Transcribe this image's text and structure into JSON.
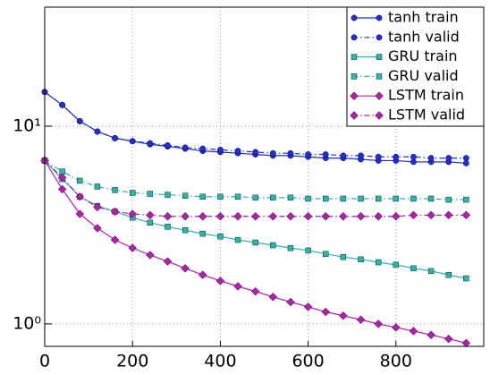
{
  "chart_data": {
    "type": "line",
    "x": [
      0,
      40,
      80,
      120,
      160,
      200,
      240,
      280,
      320,
      360,
      400,
      440,
      480,
      520,
      560,
      600,
      640,
      680,
      720,
      760,
      800,
      840,
      880,
      920,
      960
    ],
    "series": [
      {
        "name": "tanh train",
        "color": "#1f2fd6",
        "marker": "circle",
        "linestyle": "solid",
        "values": [
          14.9,
          12.8,
          10.6,
          9.4,
          8.7,
          8.4,
          8.1,
          7.9,
          7.7,
          7.5,
          7.4,
          7.3,
          7.2,
          7.1,
          7.1,
          7.0,
          6.9,
          6.9,
          6.8,
          6.7,
          6.7,
          6.6,
          6.6,
          6.6,
          6.5
        ]
      },
      {
        "name": "tanh valid",
        "color": "#1f2fd6",
        "marker": "circle",
        "linestyle": "dashdot",
        "values": [
          14.9,
          12.8,
          10.6,
          9.4,
          8.7,
          8.4,
          8.2,
          8.0,
          7.8,
          7.7,
          7.6,
          7.5,
          7.4,
          7.3,
          7.3,
          7.2,
          7.2,
          7.1,
          7.1,
          7.0,
          7.0,
          7.0,
          6.9,
          6.9,
          6.9
        ]
      },
      {
        "name": "GRU train",
        "color": "#2ab5ae",
        "marker": "square",
        "linestyle": "solid",
        "values": [
          6.7,
          5.4,
          4.4,
          3.95,
          3.7,
          3.45,
          3.25,
          3.1,
          2.98,
          2.86,
          2.77,
          2.66,
          2.58,
          2.5,
          2.42,
          2.35,
          2.26,
          2.18,
          2.12,
          2.05,
          1.99,
          1.91,
          1.85,
          1.77,
          1.7
        ]
      },
      {
        "name": "GRU valid",
        "color": "#2ab5ae",
        "marker": "square",
        "linestyle": "dashdot",
        "values": [
          6.7,
          5.9,
          5.3,
          4.95,
          4.75,
          4.6,
          4.55,
          4.5,
          4.45,
          4.4,
          4.4,
          4.4,
          4.35,
          4.35,
          4.35,
          4.3,
          4.3,
          4.3,
          4.3,
          4.3,
          4.3,
          4.3,
          4.3,
          4.25,
          4.25
        ]
      },
      {
        "name": "LSTM train",
        "color": "#b01fb0",
        "marker": "diamond",
        "linestyle": "solid",
        "values": [
          6.7,
          4.8,
          3.6,
          3.05,
          2.66,
          2.42,
          2.23,
          2.07,
          1.91,
          1.77,
          1.65,
          1.55,
          1.46,
          1.37,
          1.29,
          1.22,
          1.15,
          1.1,
          1.05,
          1.0,
          0.96,
          0.92,
          0.88,
          0.84,
          0.8
        ]
      },
      {
        "name": "LSTM valid",
        "color": "#b01fb0",
        "marker": "diamond",
        "linestyle": "dashdot",
        "values": [
          6.7,
          5.5,
          4.4,
          3.9,
          3.7,
          3.6,
          3.55,
          3.5,
          3.5,
          3.5,
          3.5,
          3.5,
          3.5,
          3.5,
          3.5,
          3.5,
          3.5,
          3.5,
          3.5,
          3.5,
          3.5,
          3.55,
          3.55,
          3.55,
          3.55
        ]
      }
    ],
    "xlim": [
      0,
      1000
    ],
    "xticks": [
      0,
      200,
      400,
      600,
      800
    ],
    "ylim": [
      0.77,
      40
    ],
    "yticks": [
      {
        "value": 1,
        "label": "10⁰"
      },
      {
        "value": 10,
        "label": "10¹"
      }
    ],
    "yscale": "log",
    "grid": true,
    "legend": "upper right"
  }
}
